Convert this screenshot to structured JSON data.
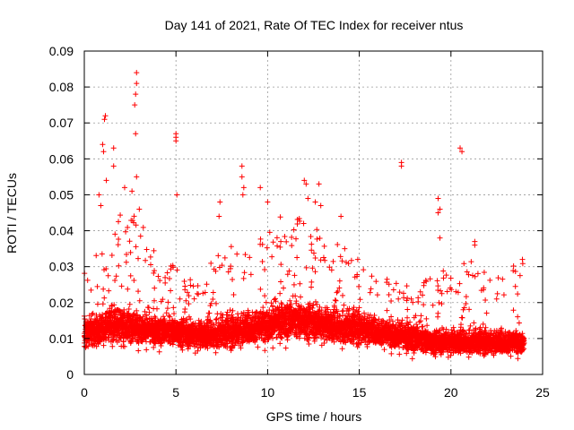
{
  "chart_data": {
    "type": "scatter",
    "title": "Day 141 of 2021, Rate Of TEC Index for receiver ntus",
    "xlabel": "GPS time / hours",
    "ylabel": "ROTI / TECUs",
    "xlim": [
      0,
      25
    ],
    "ylim": [
      0,
      0.09
    ],
    "xticks": [
      0,
      5,
      10,
      15,
      20,
      25
    ],
    "yticks": [
      0,
      0.01,
      0.02,
      0.03,
      0.04,
      0.05,
      0.06,
      0.07,
      0.08,
      0.09
    ],
    "xtick_labels": [
      "0",
      "5",
      "10",
      "15",
      "20",
      "25"
    ],
    "ytick_labels": [
      "0",
      "0.01",
      "0.02",
      "0.03",
      "0.04",
      "0.05",
      "0.06",
      "0.07",
      "0.08",
      "0.09"
    ],
    "grid": true,
    "marker": "+",
    "color": "#ff0000",
    "series": [
      {
        "name": "ROTI",
        "profile": {
          "hours": [
            0,
            1,
            2,
            3,
            4,
            5,
            6,
            7,
            8,
            9,
            10,
            11,
            12,
            13,
            14,
            15,
            16,
            17,
            18,
            19,
            20,
            21,
            22,
            23,
            24
          ],
          "base_mean": [
            0.011,
            0.013,
            0.014,
            0.013,
            0.012,
            0.012,
            0.011,
            0.011,
            0.012,
            0.013,
            0.014,
            0.015,
            0.015,
            0.014,
            0.013,
            0.013,
            0.012,
            0.011,
            0.01,
            0.009,
            0.009,
            0.009,
            0.009,
            0.009,
            0.009
          ],
          "base_spread": [
            0.006,
            0.007,
            0.008,
            0.007,
            0.006,
            0.006,
            0.006,
            0.006,
            0.007,
            0.007,
            0.008,
            0.008,
            0.008,
            0.007,
            0.007,
            0.007,
            0.006,
            0.006,
            0.006,
            0.005,
            0.005,
            0.005,
            0.005,
            0.005,
            0.005
          ],
          "envelope": [
            0.03,
            0.04,
            0.045,
            0.045,
            0.032,
            0.032,
            0.026,
            0.032,
            0.036,
            0.036,
            0.04,
            0.046,
            0.046,
            0.04,
            0.036,
            0.032,
            0.028,
            0.026,
            0.024,
            0.03,
            0.03,
            0.032,
            0.028,
            0.03,
            0.032
          ]
        },
        "outliers": [
          {
            "x": 0.8,
            "y": 0.05
          },
          {
            "x": 0.9,
            "y": 0.047
          },
          {
            "x": 1.1,
            "y": 0.071
          },
          {
            "x": 1.15,
            "y": 0.072
          },
          {
            "x": 1.0,
            "y": 0.064
          },
          {
            "x": 1.05,
            "y": 0.062
          },
          {
            "x": 1.6,
            "y": 0.063
          },
          {
            "x": 1.6,
            "y": 0.058
          },
          {
            "x": 1.2,
            "y": 0.054
          },
          {
            "x": 2.2,
            "y": 0.052
          },
          {
            "x": 2.6,
            "y": 0.051
          },
          {
            "x": 2.85,
            "y": 0.084
          },
          {
            "x": 2.85,
            "y": 0.081
          },
          {
            "x": 2.8,
            "y": 0.078
          },
          {
            "x": 2.75,
            "y": 0.075
          },
          {
            "x": 2.8,
            "y": 0.067
          },
          {
            "x": 2.85,
            "y": 0.055
          },
          {
            "x": 3.0,
            "y": 0.046
          },
          {
            "x": 5.0,
            "y": 0.067
          },
          {
            "x": 5.0,
            "y": 0.066
          },
          {
            "x": 5.0,
            "y": 0.065
          },
          {
            "x": 5.05,
            "y": 0.05
          },
          {
            "x": 7.4,
            "y": 0.048
          },
          {
            "x": 7.35,
            "y": 0.044
          },
          {
            "x": 8.6,
            "y": 0.058
          },
          {
            "x": 8.6,
            "y": 0.055
          },
          {
            "x": 8.7,
            "y": 0.052
          },
          {
            "x": 8.65,
            "y": 0.05
          },
          {
            "x": 9.6,
            "y": 0.052
          },
          {
            "x": 10.0,
            "y": 0.048
          },
          {
            "x": 12.0,
            "y": 0.054
          },
          {
            "x": 12.1,
            "y": 0.053
          },
          {
            "x": 12.2,
            "y": 0.049
          },
          {
            "x": 12.6,
            "y": 0.048
          },
          {
            "x": 12.8,
            "y": 0.053
          },
          {
            "x": 12.9,
            "y": 0.047
          },
          {
            "x": 14.0,
            "y": 0.044
          },
          {
            "x": 17.3,
            "y": 0.059
          },
          {
            "x": 17.3,
            "y": 0.058
          },
          {
            "x": 19.3,
            "y": 0.049
          },
          {
            "x": 19.4,
            "y": 0.046
          },
          {
            "x": 19.3,
            "y": 0.045
          },
          {
            "x": 19.4,
            "y": 0.038
          },
          {
            "x": 20.5,
            "y": 0.063
          },
          {
            "x": 20.6,
            "y": 0.062
          },
          {
            "x": 21.3,
            "y": 0.037
          },
          {
            "x": 21.3,
            "y": 0.036
          },
          {
            "x": 23.9,
            "y": 0.032
          }
        ],
        "sample_interval_hours": 0.012
      }
    ]
  }
}
